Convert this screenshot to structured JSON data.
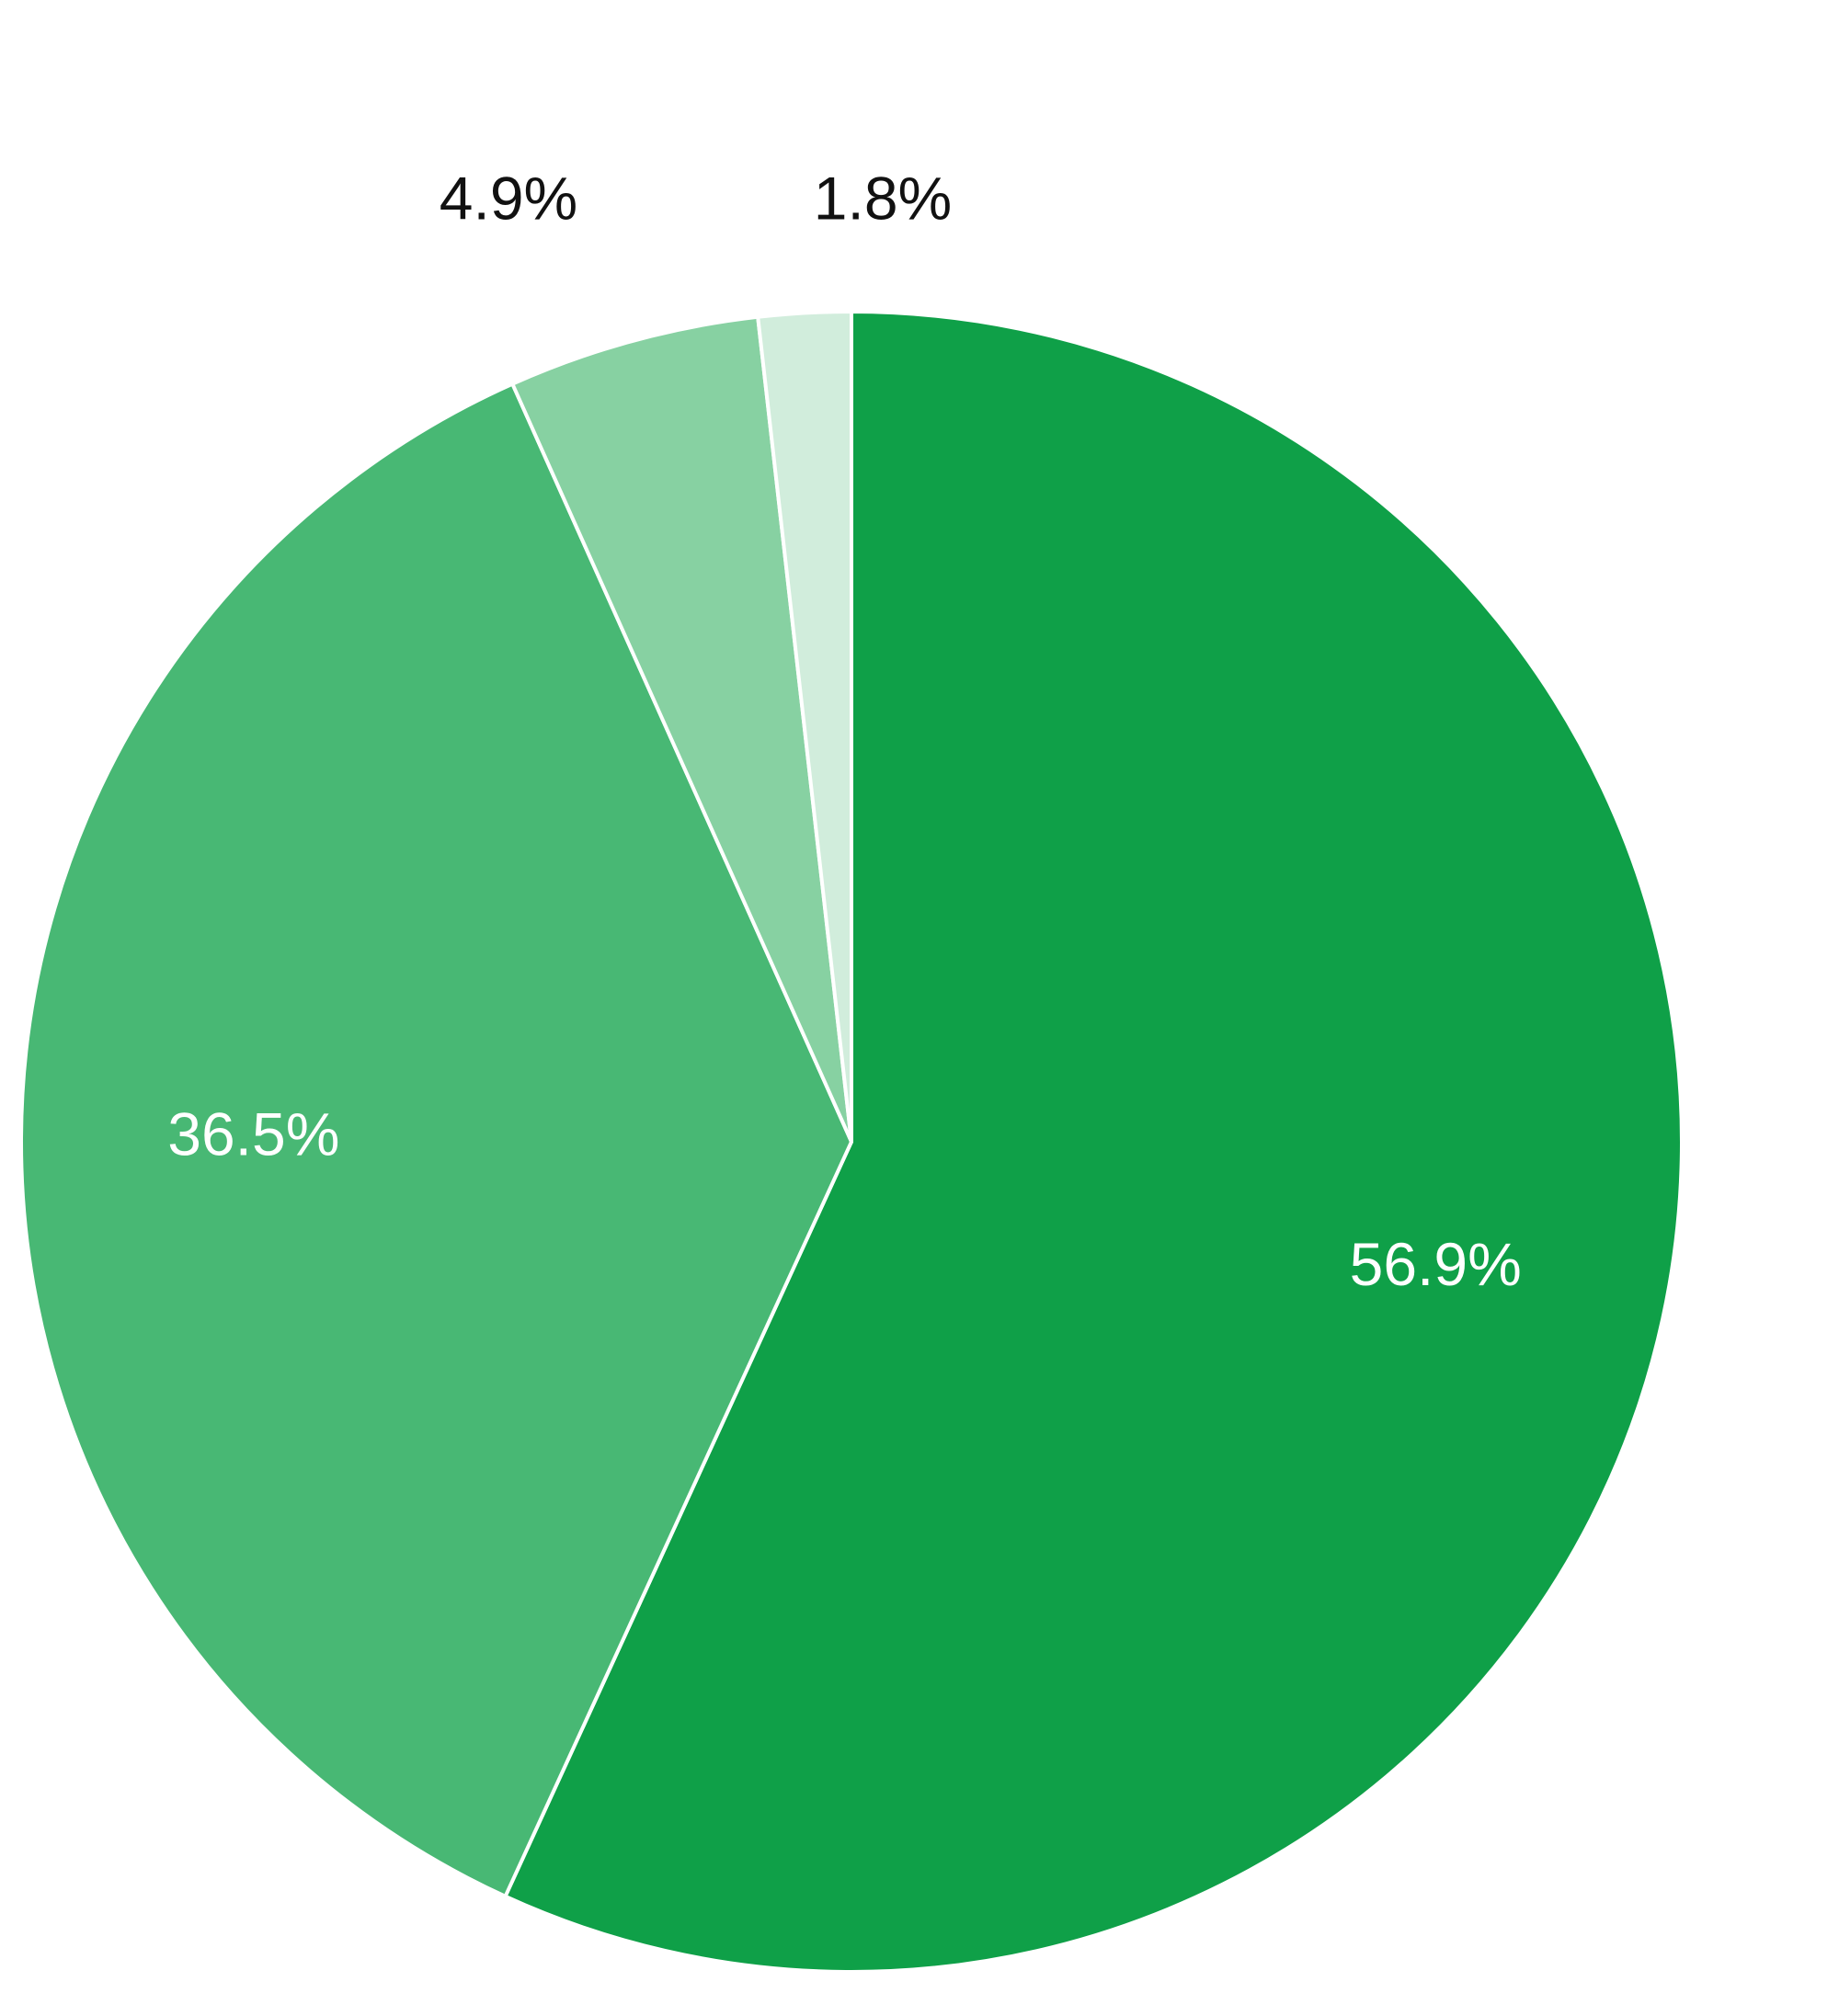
{
  "chart_data": {
    "type": "pie",
    "start_angle": "12 o'clock",
    "direction": "clockwise",
    "slices": [
      {
        "value": 56.9,
        "label": "56.9%",
        "color": "#0fa048",
        "label_color": "#ffffff",
        "label_position": "inside"
      },
      {
        "value": 36.5,
        "label": "36.5%",
        "color": "#48b874",
        "label_color": "#ffffff",
        "label_position": "inside"
      },
      {
        "value": 4.9,
        "label": "4.9%",
        "color": "#87d1a2",
        "label_color": "#111111",
        "label_position": "outside"
      },
      {
        "value": 1.8,
        "label": "1.8%",
        "color": "#d1eddc",
        "label_color": "#111111",
        "label_position": "outside"
      }
    ]
  }
}
